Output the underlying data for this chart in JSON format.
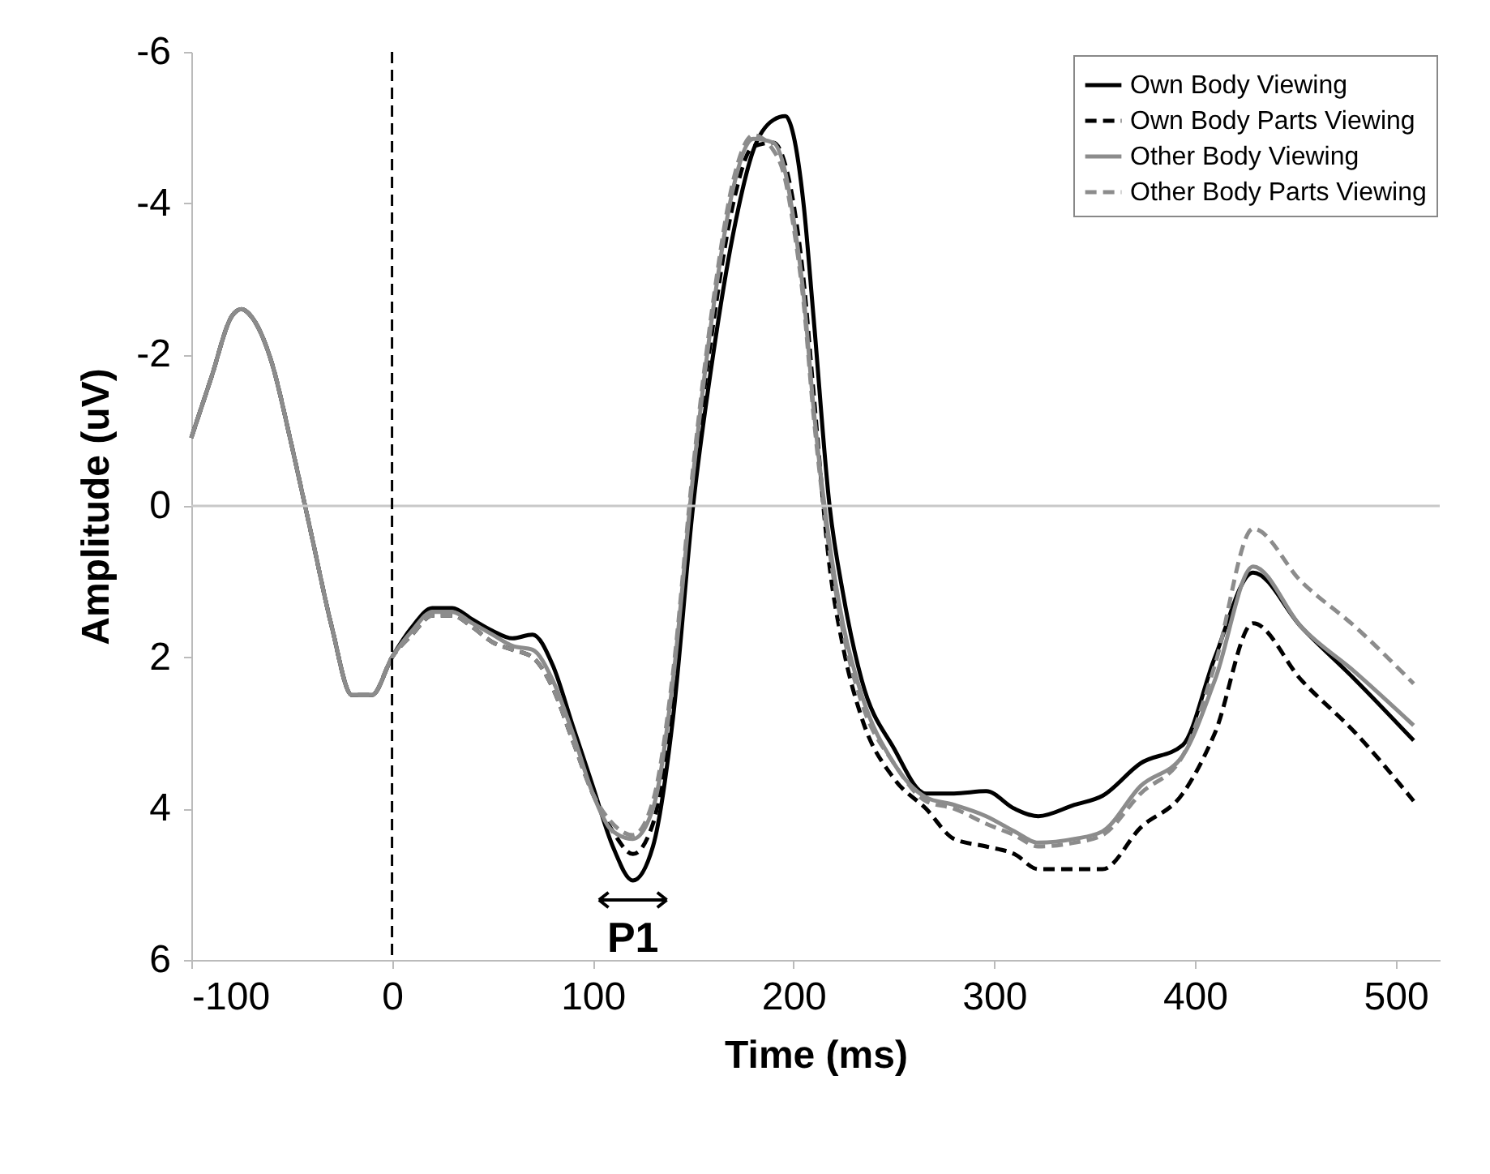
{
  "chart_data": {
    "type": "line",
    "xlabel": "Time (ms)",
    "ylabel": "Amplitude (uV)",
    "x": [
      -100,
      -90,
      -80,
      -75,
      -70,
      -60,
      -50,
      -40,
      -30,
      -20,
      -10,
      0,
      10,
      20,
      30,
      40,
      50,
      60,
      70,
      80,
      90,
      100,
      110,
      120,
      130,
      140,
      150,
      160,
      170,
      180,
      190,
      196,
      200,
      205,
      210,
      218,
      225,
      234,
      250,
      266,
      280,
      296,
      310,
      322,
      340,
      354,
      373,
      394,
      410,
      429,
      453,
      480,
      509
    ],
    "series": [
      {
        "name": "Own Body Viewing",
        "color": "#000000",
        "line_style": "solid",
        "values": [
          -0.9,
          -1.7,
          -2.5,
          -2.6,
          -2.5,
          -1.9,
          -0.8,
          0.4,
          1.6,
          2.5,
          2.5,
          2.0,
          1.6,
          1.35,
          1.35,
          1.5,
          1.65,
          1.75,
          1.7,
          2.1,
          2.9,
          3.7,
          4.5,
          4.95,
          4.5,
          2.8,
          0.0,
          -2.0,
          -3.6,
          -4.7,
          -5.1,
          -5.15,
          -4.9,
          -4.0,
          -2.5,
          0.0,
          1.2,
          2.3,
          3.2,
          3.8,
          3.8,
          3.77,
          4.0,
          4.1,
          3.95,
          3.83,
          3.4,
          3.16,
          2.0,
          0.88,
          1.6,
          2.3,
          3.1
        ]
      },
      {
        "name": "Own Body Parts Viewing",
        "color": "#000000",
        "line_style": "dashed",
        "values": [
          -0.9,
          -1.7,
          -2.5,
          -2.6,
          -2.5,
          -1.9,
          -0.8,
          0.4,
          1.6,
          2.5,
          2.5,
          2.0,
          1.7,
          1.45,
          1.45,
          1.6,
          1.8,
          1.9,
          2.0,
          2.4,
          3.1,
          3.8,
          4.3,
          4.6,
          4.2,
          2.5,
          -0.3,
          -2.4,
          -4.0,
          -4.75,
          -4.8,
          -4.5,
          -4.0,
          -3.0,
          -1.5,
          0.8,
          1.9,
          2.8,
          3.6,
          4.0,
          4.4,
          4.5,
          4.6,
          4.8,
          4.8,
          4.8,
          4.25,
          3.8,
          3.0,
          1.55,
          2.3,
          3.0,
          3.9
        ]
      },
      {
        "name": "Other Body Viewing",
        "color": "#8c8c8c",
        "line_style": "solid",
        "values": [
          -0.9,
          -1.7,
          -2.5,
          -2.6,
          -2.5,
          -1.9,
          -0.8,
          0.4,
          1.6,
          2.5,
          2.5,
          2.0,
          1.65,
          1.4,
          1.4,
          1.55,
          1.7,
          1.85,
          1.9,
          2.3,
          3.0,
          3.8,
          4.3,
          4.4,
          4.0,
          2.3,
          -0.4,
          -2.6,
          -4.2,
          -4.85,
          -4.8,
          -4.4,
          -3.8,
          -2.8,
          -1.3,
          0.5,
          1.6,
          2.5,
          3.4,
          3.85,
          3.95,
          4.1,
          4.3,
          4.45,
          4.4,
          4.3,
          3.7,
          3.3,
          2.3,
          0.8,
          1.6,
          2.2,
          2.9
        ]
      },
      {
        "name": "Other Body Parts Viewing",
        "color": "#8c8c8c",
        "line_style": "dashed",
        "values": [
          -0.9,
          -1.7,
          -2.5,
          -2.6,
          -2.5,
          -1.9,
          -0.8,
          0.4,
          1.6,
          2.5,
          2.5,
          2.0,
          1.7,
          1.45,
          1.45,
          1.6,
          1.8,
          1.9,
          2.0,
          2.4,
          3.1,
          3.8,
          4.2,
          4.35,
          3.9,
          2.2,
          -0.5,
          -2.7,
          -4.3,
          -4.9,
          -4.7,
          -4.3,
          -3.7,
          -2.7,
          -1.2,
          0.6,
          1.7,
          2.6,
          3.4,
          3.9,
          4.0,
          4.2,
          4.35,
          4.5,
          4.45,
          4.35,
          3.8,
          3.3,
          2.1,
          0.3,
          1.0,
          1.6,
          2.35
        ]
      }
    ],
    "xlim": [
      -100,
      522
    ],
    "xticks": [
      -100,
      0,
      100,
      200,
      300,
      400,
      500
    ],
    "ylim": [
      6,
      -6
    ],
    "yticks": [
      -6,
      -4,
      -2,
      0,
      2,
      4,
      6
    ],
    "ref_lines": [
      {
        "axis": "x",
        "value": 0,
        "color": "#000000",
        "line_style": "dashed"
      },
      {
        "axis": "y",
        "value": 0,
        "color": "#c8c8c8",
        "line_style": "solid"
      }
    ],
    "annotations": [
      {
        "text": "P1",
        "x": 120,
        "y": 4.95
      }
    ],
    "grid": false,
    "legend": "top right",
    "marker": "none"
  }
}
